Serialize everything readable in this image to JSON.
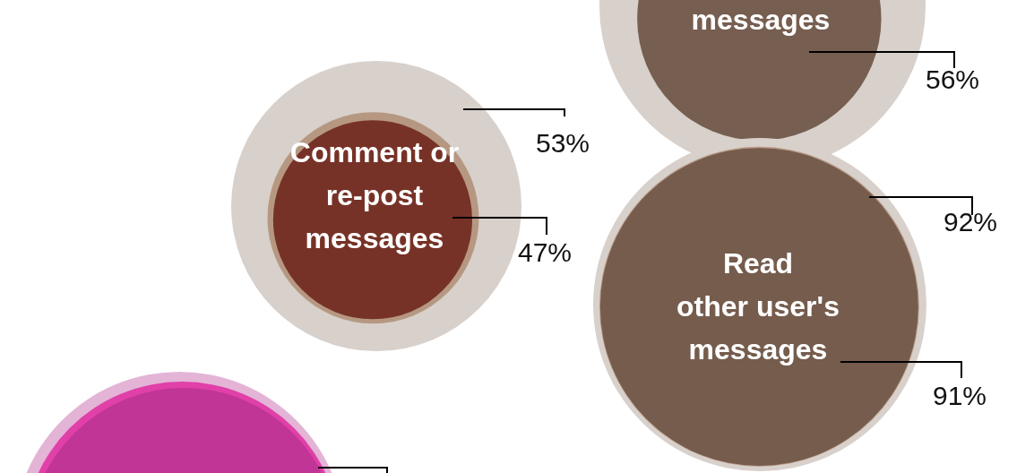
{
  "chart_data": {
    "type": "other",
    "categories": [
      "messages",
      "Comment or\nre-post\nmessages",
      "Read\nother user's\nmessages"
    ],
    "series": [
      {
        "color": "#b5967f",
        "values": [
          null,
          53,
          92
        ],
        "value_labels": [
          null,
          "53%",
          "92%"
        ]
      },
      {
        "colors": [
          "#735a4b",
          "#752e24",
          "#735a4b"
        ],
        "values": [
          56,
          47,
          91
        ],
        "value_labels": [
          "56%",
          "47%",
          "91%"
        ]
      }
    ]
  }
}
